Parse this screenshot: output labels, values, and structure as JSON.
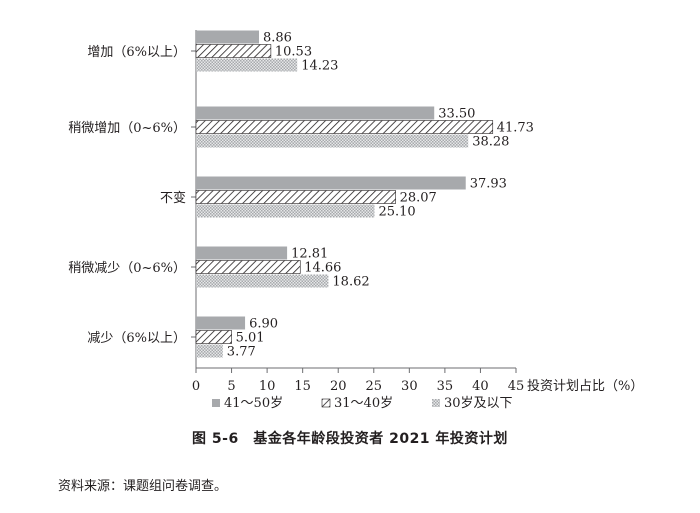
{
  "chart_data": {
    "type": "bar",
    "orientation": "horizontal",
    "categories": [
      "增加（6%以上）",
      "稍微增加（0~6%）",
      "不变",
      "稍微减少（0~6%）",
      "减少（6%以上）"
    ],
    "series": [
      {
        "name": "41～50岁",
        "values": [
          8.86,
          33.5,
          37.93,
          12.81,
          6.9
        ],
        "style": "solid-gray",
        "color": "#a7a9ac"
      },
      {
        "name": "31～40岁",
        "values": [
          10.53,
          41.73,
          28.07,
          14.66,
          5.01
        ],
        "style": "diagonal-hatch",
        "color": "#231f20"
      },
      {
        "name": "30岁及以下",
        "values": [
          14.23,
          38.28,
          25.1,
          18.62,
          3.77
        ],
        "style": "dotted",
        "color": "#bcbec0"
      }
    ],
    "xlabel": "投资计划占比（%）",
    "xlim": [
      0,
      45
    ],
    "xticks": [
      "0",
      "5",
      "10",
      "15",
      "20",
      "25",
      "30",
      "35",
      "40",
      "45"
    ],
    "legend_position": "bottom",
    "grid": false
  },
  "caption": "图 5-6　基金各年龄段投资者 2021 年投资计划",
  "source": "资料来源：课题组问卷调查。"
}
